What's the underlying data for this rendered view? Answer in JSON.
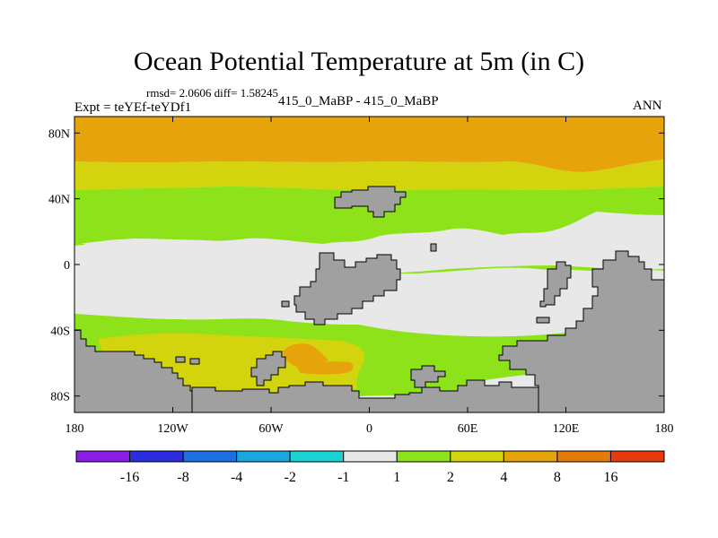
{
  "chart_data": {
    "type": "heatmap",
    "title": "Ocean Potential Temperature at 5m (in C)",
    "stats": "rmsd= 2.0606 diff= 1.58245",
    "left_label": "Expt = teYEf-teYDf1",
    "center_label": "415_0_MaBP - 415_0_MaBP",
    "right_label": "ANN",
    "x_ticks": [
      "180",
      "120W",
      "60W",
      "0",
      "60E",
      "120E",
      "180"
    ],
    "x_values": [
      -180,
      -120,
      -60,
      0,
      60,
      120,
      180
    ],
    "y_ticks": [
      "80N",
      "40N",
      "0",
      "40S",
      "80S"
    ],
    "y_values": [
      80,
      40,
      0,
      -40,
      -80
    ],
    "xlim": [
      -180,
      180
    ],
    "ylim": [
      -90,
      90
    ],
    "colorbar": {
      "labels": [
        "-16",
        "-8",
        "-4",
        "-2",
        "-1",
        "1",
        "2",
        "4",
        "8",
        "16"
      ],
      "colors": [
        "#8a1ee6",
        "#2a2ee0",
        "#1c6fe0",
        "#18a8e0",
        "#1ad4d4",
        "#e8e8e8",
        "#8ee21a",
        "#d4d40e",
        "#e6a40a",
        "#e67a0a",
        "#e63a0a"
      ]
    },
    "land_color": "#a0a0a0",
    "regions": [
      {
        "name": "arctic-band",
        "value_range": "8 to 16",
        "color": "#e6a40a",
        "lat": [
          62,
          90
        ]
      },
      {
        "name": "north-subpolar-band",
        "value_range": "4 to 8",
        "color": "#d4d40e",
        "lat": [
          45,
          62
        ]
      },
      {
        "name": "north-midlatitude-band",
        "value_range": "2 to 4",
        "color": "#8ee21a",
        "lat": [
          10,
          45
        ]
      },
      {
        "name": "tropical-band",
        "value_range": "-1 to 1",
        "color": "#e8e8e8",
        "lat": [
          -30,
          15
        ]
      },
      {
        "name": "south-pacific-anomaly",
        "value_range": "4 to 8",
        "color": "#d4d40e",
        "lat": [
          -75,
          -45
        ]
      },
      {
        "name": "south-atlantic-anomaly",
        "value_range": "8 to 16",
        "color": "#e6a40a",
        "lat": [
          -60,
          -50
        ]
      }
    ]
  }
}
